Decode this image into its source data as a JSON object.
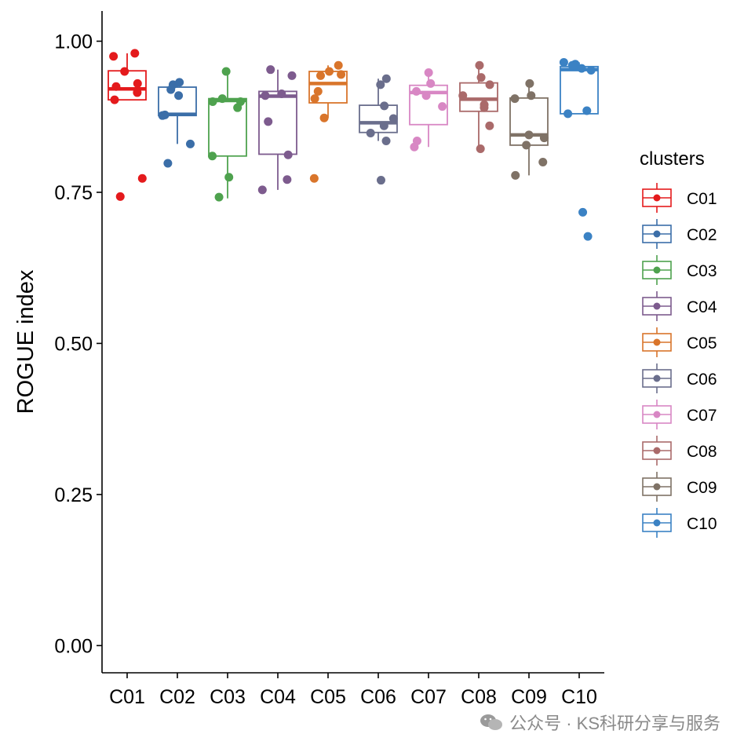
{
  "chart_data": {
    "type": "boxplot",
    "ylabel": "ROGUE index",
    "xlabel": "",
    "ylim": [
      -0.045,
      1.05
    ],
    "yticks": [
      "0.00",
      "0.25",
      "0.50",
      "0.75",
      "1.00"
    ],
    "ytick_values": [
      0,
      0.25,
      0.5,
      0.75,
      1.0
    ],
    "legend_title": "clusters",
    "legend_position": "right",
    "grid": false,
    "categories": [
      "C01",
      "C02",
      "C03",
      "C04",
      "C05",
      "C06",
      "C07",
      "C08",
      "C09",
      "C10"
    ],
    "series": [
      {
        "name": "C01",
        "color": "#e41a1c",
        "q1": 0.903,
        "median": 0.921,
        "q3": 0.951,
        "whisker_low": 0.903,
        "whisker_high": 0.98,
        "points": [
          0.98,
          0.975,
          0.95,
          0.93,
          0.925,
          0.915,
          0.903,
          0.773,
          0.743
        ]
      },
      {
        "name": "C02",
        "color": "#3b6ea8",
        "q1": 0.877,
        "median": 0.879,
        "q3": 0.924,
        "whisker_low": 0.83,
        "whisker_high": 0.932,
        "points": [
          0.932,
          0.928,
          0.92,
          0.91,
          0.878,
          0.877,
          0.83,
          0.798
        ]
      },
      {
        "name": "C03",
        "color": "#4ea24e",
        "q1": 0.81,
        "median": 0.902,
        "q3": 0.905,
        "whisker_low": 0.74,
        "whisker_high": 0.95,
        "points": [
          0.95,
          0.905,
          0.9,
          0.9,
          0.89,
          0.81,
          0.775,
          0.742
        ]
      },
      {
        "name": "C04",
        "color": "#7d5b8e",
        "q1": 0.813,
        "median": 0.909,
        "q3": 0.917,
        "whisker_low": 0.754,
        "whisker_high": 0.953,
        "points": [
          0.953,
          0.943,
          0.913,
          0.91,
          0.867,
          0.812,
          0.771,
          0.754
        ]
      },
      {
        "name": "C05",
        "color": "#d9752b",
        "q1": 0.898,
        "median": 0.93,
        "q3": 0.95,
        "whisker_low": 0.873,
        "whisker_high": 0.96,
        "points": [
          0.96,
          0.95,
          0.945,
          0.943,
          0.917,
          0.905,
          0.873,
          0.773
        ]
      },
      {
        "name": "C06",
        "color": "#6a6e8c",
        "q1": 0.849,
        "median": 0.865,
        "q3": 0.894,
        "whisker_low": 0.835,
        "whisker_high": 0.938,
        "points": [
          0.938,
          0.928,
          0.893,
          0.872,
          0.86,
          0.848,
          0.835,
          0.77
        ]
      },
      {
        "name": "C07",
        "color": "#d887c4",
        "q1": 0.862,
        "median": 0.915,
        "q3": 0.927,
        "whisker_low": 0.825,
        "whisker_high": 0.948,
        "points": [
          0.948,
          0.93,
          0.917,
          0.91,
          0.892,
          0.835,
          0.825
        ]
      },
      {
        "name": "C08",
        "color": "#aa6a6a",
        "q1": 0.884,
        "median": 0.904,
        "q3": 0.931,
        "whisker_low": 0.822,
        "whisker_high": 0.96,
        "points": [
          0.96,
          0.94,
          0.928,
          0.91,
          0.895,
          0.89,
          0.86,
          0.822
        ]
      },
      {
        "name": "C09",
        "color": "#7f7266",
        "q1": 0.828,
        "median": 0.845,
        "q3": 0.906,
        "whisker_low": 0.778,
        "whisker_high": 0.93,
        "points": [
          0.93,
          0.91,
          0.905,
          0.845,
          0.84,
          0.828,
          0.8,
          0.778
        ]
      },
      {
        "name": "C10",
        "color": "#3b82c4",
        "q1": 0.88,
        "median": 0.953,
        "q3": 0.958,
        "whisker_low": 0.88,
        "whisker_high": 0.965,
        "points": [
          0.965,
          0.962,
          0.96,
          0.955,
          0.952,
          0.885,
          0.88,
          0.717,
          0.677
        ]
      }
    ]
  },
  "watermark": {
    "text": "公众号 · KS科研分享与服务",
    "icon": "wechat-icon"
  }
}
